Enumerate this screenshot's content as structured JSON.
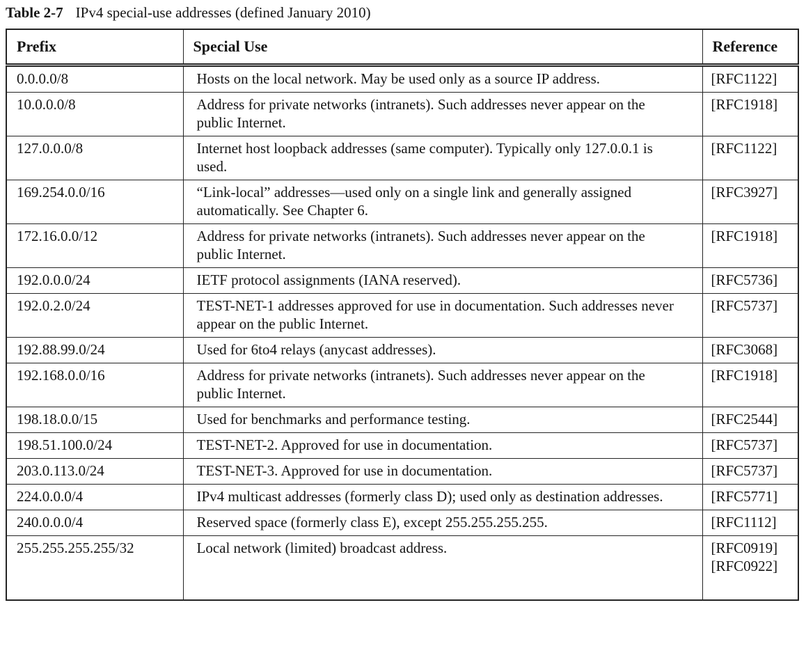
{
  "caption": {
    "label": "Table 2-7",
    "title": "IPv4 special-use addresses (defined January 2010)"
  },
  "table": {
    "headers": [
      "Prefix",
      "Special Use",
      "Reference"
    ],
    "rows": [
      {
        "prefix": "0.0.0.0/8",
        "use": "Hosts on the local network. May be used only as a source IP address.",
        "refs": [
          "[RFC1122]"
        ]
      },
      {
        "prefix": "10.0.0.0/8",
        "use": "Address for private networks (intranets). Such addresses never appear on the public Internet.",
        "refs": [
          "[RFC1918]"
        ]
      },
      {
        "prefix": "127.0.0.0/8",
        "use": "Internet host loopback addresses (same computer). Typically only 127.0.0.1 is used.",
        "refs": [
          "[RFC1122]"
        ]
      },
      {
        "prefix": "169.254.0.0/16",
        "use": "“Link-local” addresses—used only on a single link and generally assigned automatically. See Chapter 6.",
        "refs": [
          "[RFC3927]"
        ]
      },
      {
        "prefix": "172.16.0.0/12",
        "use": "Address for private networks (intranets). Such addresses never appear on the public Internet.",
        "refs": [
          "[RFC1918]"
        ]
      },
      {
        "prefix": "192.0.0.0/24",
        "use": "IETF protocol assignments (IANA reserved).",
        "refs": [
          "[RFC5736]"
        ]
      },
      {
        "prefix": "192.0.2.0/24",
        "use": "TEST-NET-1 addresses approved for use in documentation. Such addresses never appear on the public Internet.",
        "refs": [
          "[RFC5737]"
        ]
      },
      {
        "prefix": "192.88.99.0/24",
        "use": "Used for 6to4 relays (anycast addresses).",
        "refs": [
          "[RFC3068]"
        ]
      },
      {
        "prefix": "192.168.0.0/16",
        "use": "Address for private networks (intranets). Such addresses never appear on the public Internet.",
        "refs": [
          "[RFC1918]"
        ]
      },
      {
        "prefix": "198.18.0.0/15",
        "use": "Used for benchmarks and performance testing.",
        "refs": [
          "[RFC2544]"
        ]
      },
      {
        "prefix": "198.51.100.0/24",
        "use": "TEST-NET-2. Approved for use in documentation.",
        "refs": [
          "[RFC5737]"
        ]
      },
      {
        "prefix": "203.0.113.0/24",
        "use": "TEST-NET-3. Approved for use in documentation.",
        "refs": [
          "[RFC5737]"
        ]
      },
      {
        "prefix": "224.0.0.0/4",
        "use": "IPv4 multicast addresses (formerly class D); used only as destination addresses.",
        "refs": [
          "[RFC5771]"
        ]
      },
      {
        "prefix": "240.0.0.0/4",
        "use": "Reserved space (formerly class E), except 255.255.255.255.",
        "refs": [
          "[RFC1112]"
        ]
      },
      {
        "prefix": "255.255.255.255/32",
        "use": "Local network (limited) broadcast address.",
        "refs": [
          "[RFC0919]",
          "[RFC0922]"
        ]
      }
    ]
  }
}
